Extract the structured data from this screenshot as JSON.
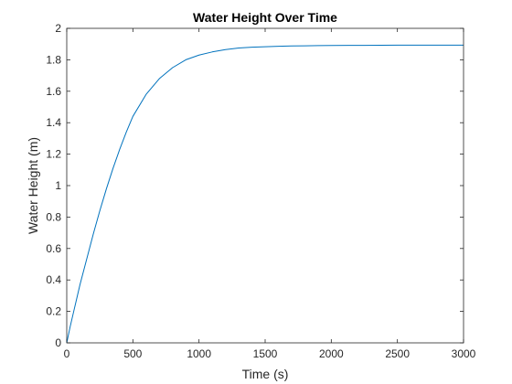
{
  "chart_data": {
    "type": "line",
    "title": "Water Height Over Time",
    "xlabel": "Time (s)",
    "ylabel": "Water Height (m)",
    "xlim": [
      0,
      3000
    ],
    "ylim": [
      0,
      2
    ],
    "xticks": [
      0,
      500,
      1000,
      1500,
      2000,
      2500,
      3000
    ],
    "xtick_labels": [
      "0",
      "500",
      "1000",
      "1500",
      "2000",
      "2500",
      "3000"
    ],
    "yticks": [
      0,
      0.2,
      0.4,
      0.6,
      0.8,
      1,
      1.2,
      1.4,
      1.6,
      1.8,
      2
    ],
    "ytick_labels": [
      "0",
      "0.2",
      "0.4",
      "0.6",
      "0.8",
      "1",
      "1.2",
      "1.4",
      "1.6",
      "1.8",
      "2"
    ],
    "grid": false,
    "series": [
      {
        "color": "#0072BD",
        "x": [
          0,
          25,
          50,
          75,
          100,
          150,
          200,
          250,
          300,
          350,
          400,
          450,
          500,
          600,
          700,
          800,
          900,
          1000,
          1100,
          1200,
          1300,
          1400,
          1500,
          1600,
          1700,
          1800,
          1900,
          2000,
          2250,
          2500,
          2750,
          3000
        ],
        "y": [
          0,
          0.1,
          0.19,
          0.28,
          0.37,
          0.53,
          0.69,
          0.84,
          0.98,
          1.11,
          1.23,
          1.34,
          1.44,
          1.58,
          1.68,
          1.75,
          1.8,
          1.83,
          1.85,
          1.865,
          1.875,
          1.88,
          1.883,
          1.886,
          1.888,
          1.889,
          1.89,
          1.891,
          1.892,
          1.893,
          1.893,
          1.893
        ]
      }
    ]
  }
}
